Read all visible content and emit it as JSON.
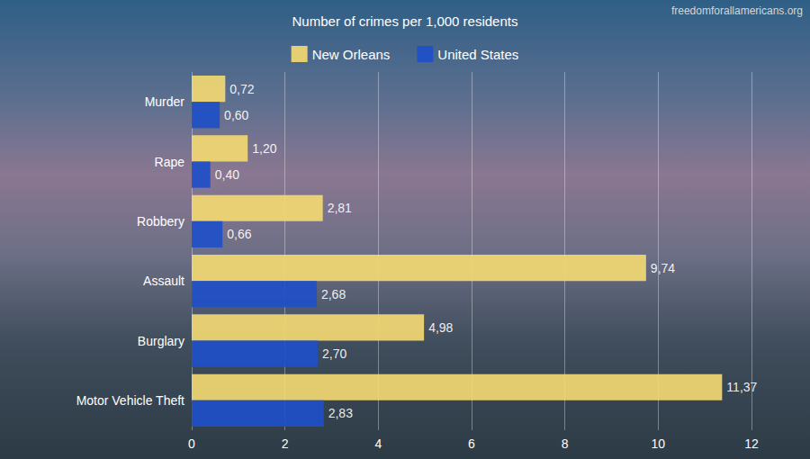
{
  "chart_data": {
    "type": "bar",
    "title": "Number of crimes per 1,000 residents",
    "annotations": [
      "freedomforallamericans.org"
    ],
    "orientation": "horizontal",
    "categories": [
      "Murder",
      "Rape",
      "Robbery",
      "Assault",
      "Burglary",
      "Motor Vehicle Theft"
    ],
    "series": [
      {
        "name": "New Orleans",
        "color": "#f2d873",
        "values": [
          0.72,
          1.2,
          2.81,
          9.74,
          4.98,
          11.37
        ],
        "value_labels": [
          "0,72",
          "1,20",
          "2,81",
          "9,74",
          "4,98",
          "11,37"
        ]
      },
      {
        "name": "United States",
        "color": "#1f4fc8",
        "values": [
          0.6,
          0.4,
          0.66,
          2.68,
          2.7,
          2.83
        ],
        "value_labels": [
          "0,60",
          "0,40",
          "0,66",
          "2,68",
          "2,70",
          "2,83"
        ]
      }
    ],
    "xlim": [
      0,
      12
    ],
    "xticks": [
      0,
      2,
      4,
      6,
      8,
      10,
      12
    ],
    "grid": true,
    "legend": "top",
    "data_labels": true
  }
}
